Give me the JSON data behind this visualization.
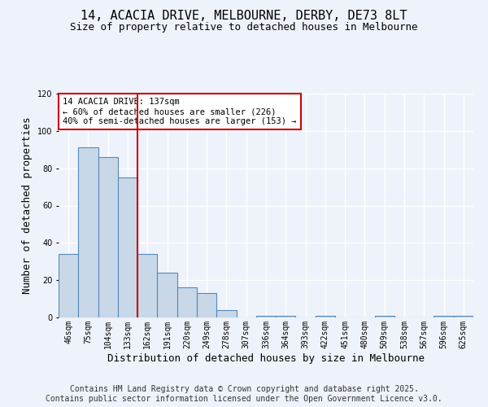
{
  "title1": "14, ACACIA DRIVE, MELBOURNE, DERBY, DE73 8LT",
  "title2": "Size of property relative to detached houses in Melbourne",
  "xlabel": "Distribution of detached houses by size in Melbourne",
  "ylabel": "Number of detached properties",
  "categories": [
    "46sqm",
    "75sqm",
    "104sqm",
    "133sqm",
    "162sqm",
    "191sqm",
    "220sqm",
    "249sqm",
    "278sqm",
    "307sqm",
    "336sqm",
    "364sqm",
    "393sqm",
    "422sqm",
    "451sqm",
    "480sqm",
    "509sqm",
    "538sqm",
    "567sqm",
    "596sqm",
    "625sqm"
  ],
  "values": [
    34,
    91,
    86,
    75,
    34,
    24,
    16,
    13,
    4,
    0,
    1,
    1,
    0,
    1,
    0,
    0,
    1,
    0,
    0,
    1,
    1
  ],
  "bar_color": "#c8d8e8",
  "bar_edge_color": "#5588bb",
  "vline_x_idx": 3,
  "vline_color": "#cc0000",
  "annotation_text": "14 ACACIA DRIVE: 137sqm\n← 60% of detached houses are smaller (226)\n40% of semi-detached houses are larger (153) →",
  "annotation_box_color": "#ffffff",
  "annotation_box_edge": "#cc0000",
  "ylim": [
    0,
    120
  ],
  "yticks": [
    0,
    20,
    40,
    60,
    80,
    100,
    120
  ],
  "footer1": "Contains HM Land Registry data © Crown copyright and database right 2025.",
  "footer2": "Contains public sector information licensed under the Open Government Licence v3.0.",
  "bg_color": "#eef2fa",
  "grid_color": "#ffffff",
  "title_fontsize": 11,
  "subtitle_fontsize": 9,
  "axis_label_fontsize": 9,
  "tick_fontsize": 7,
  "footer_fontsize": 7,
  "annotation_fontsize": 7.5
}
